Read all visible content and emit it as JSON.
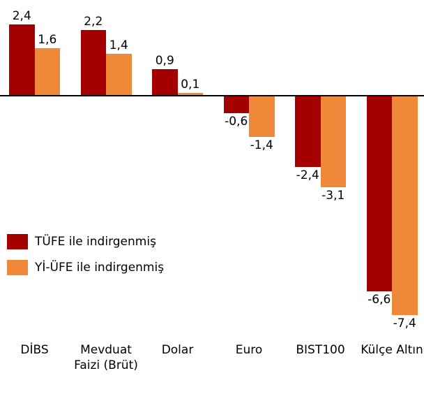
{
  "chart_data": {
    "type": "bar",
    "categories": [
      "DİBS",
      "Mevduat Faizi (Brüt)",
      "Dolar",
      "Euro",
      "BIST100",
      "Külçe Altın"
    ],
    "series": [
      {
        "name": "TÜFE ile indirgenmiş",
        "color": "#a50000",
        "values": [
          2.4,
          2.2,
          0.9,
          -0.6,
          -2.4,
          -6.6
        ],
        "value_labels": [
          "2,4",
          "2,2",
          "0,9",
          "-0,6",
          "-2,4",
          "-6,6"
        ]
      },
      {
        "name": "Yİ-ÜFE ile indirgenmiş",
        "color": "#f0883a",
        "values": [
          1.6,
          1.4,
          0.1,
          -1.4,
          -3.1,
          -7.4
        ],
        "value_labels": [
          "1,6",
          "1,4",
          "0,1",
          "-1,4",
          "-3,1",
          "-7,4"
        ]
      }
    ],
    "legend": "left"
  }
}
